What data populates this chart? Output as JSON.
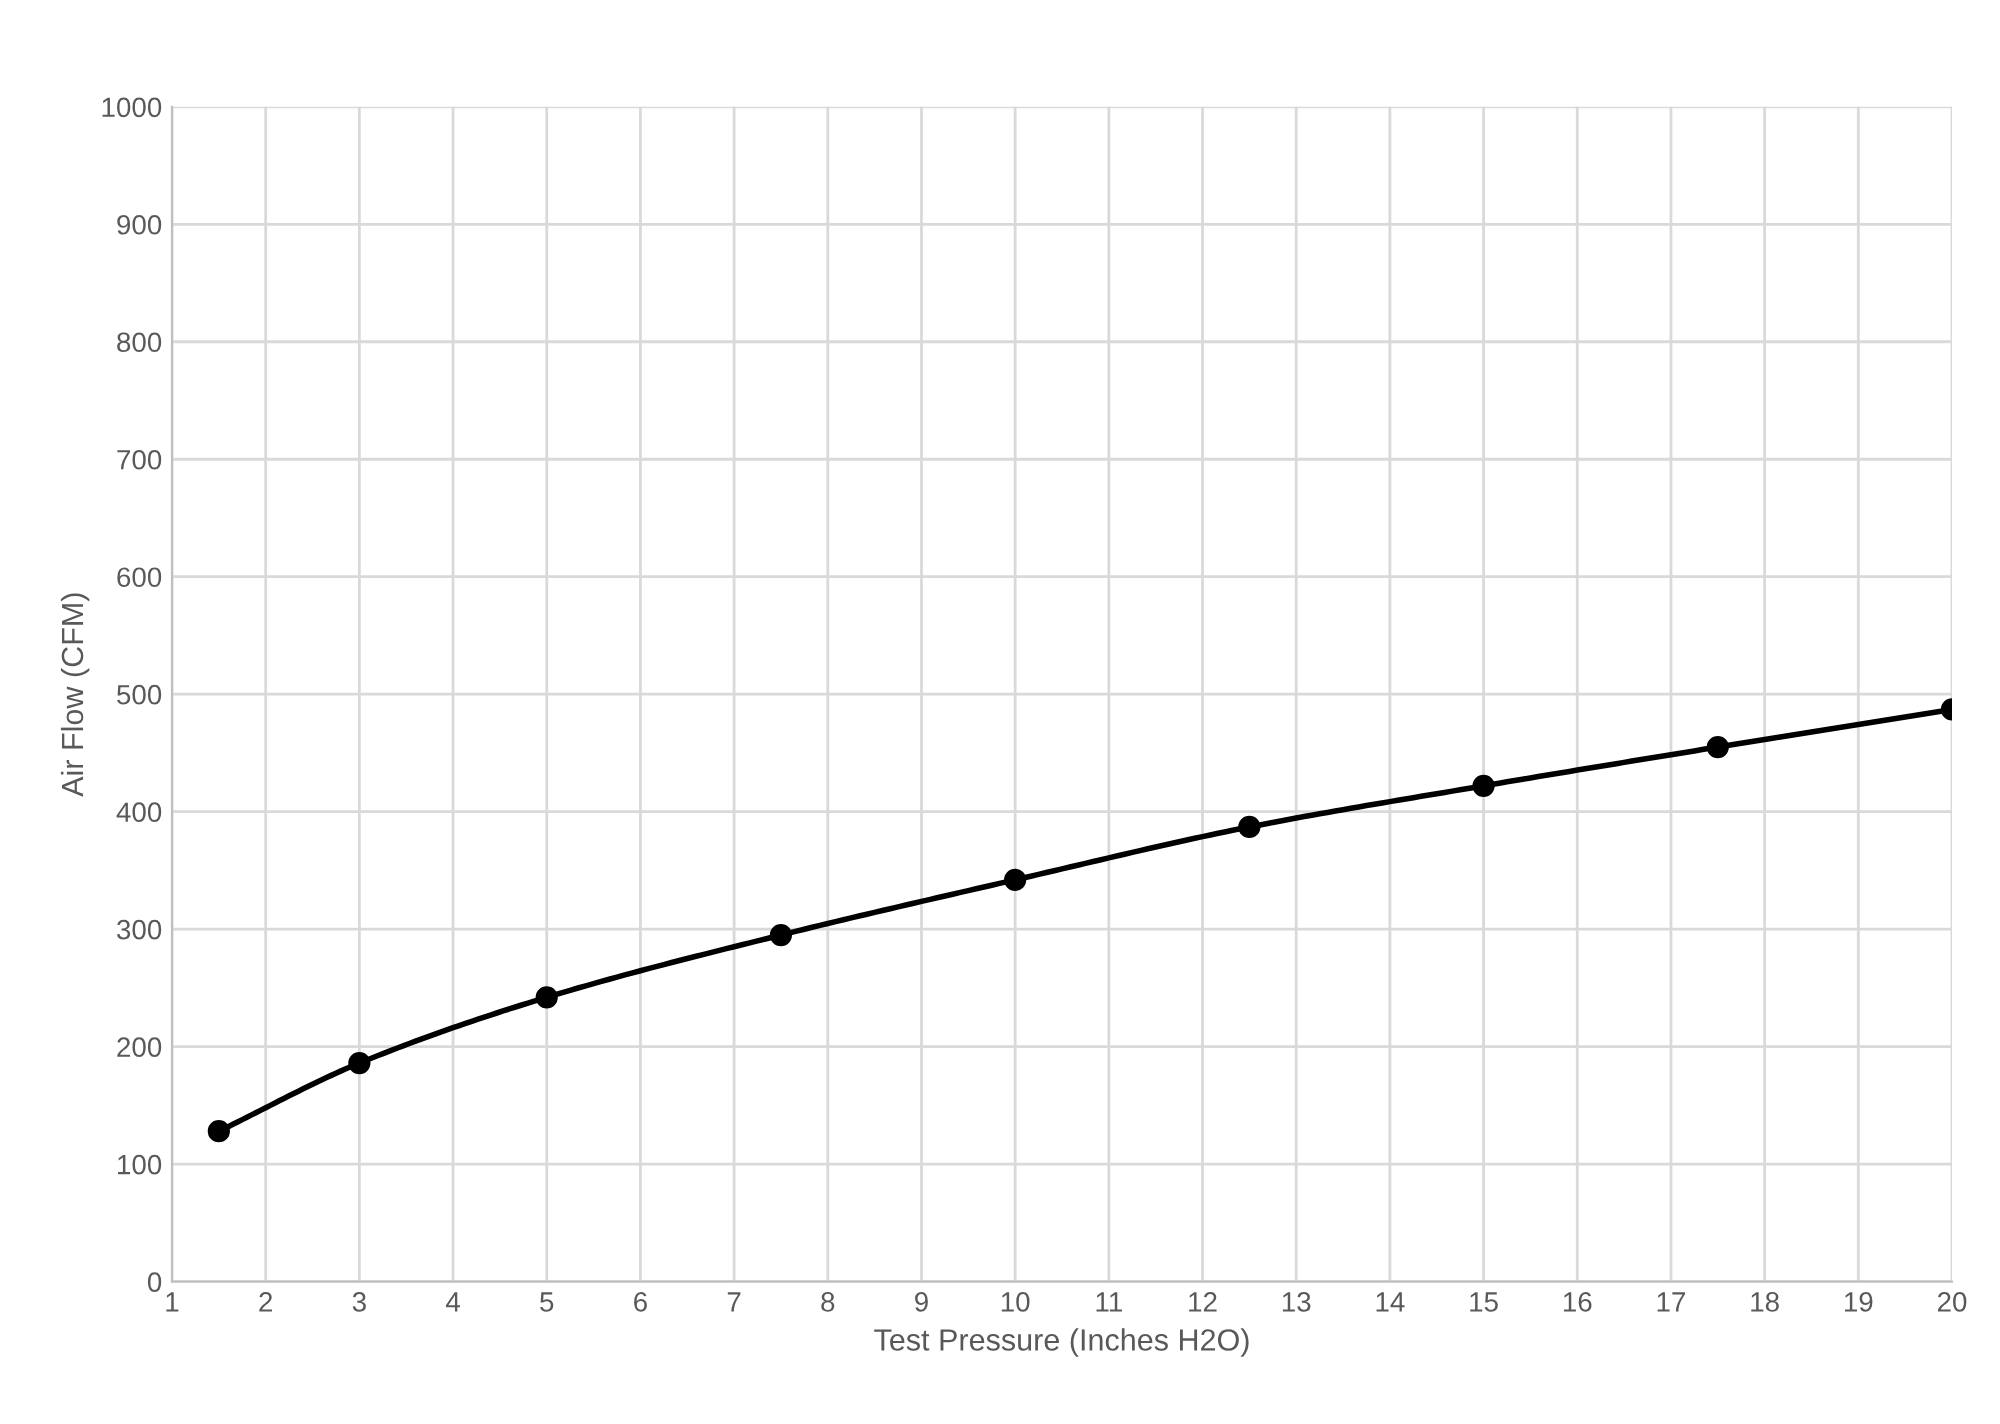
{
  "chart_data": {
    "type": "line",
    "xlabel": "Test Pressure (Inches H2O)",
    "ylabel": "Air Flow (CFM)",
    "x": [
      1.5,
      3,
      5,
      7.5,
      10,
      12.5,
      15,
      17.5,
      20
    ],
    "series": [
      {
        "color": "#000000",
        "values": [
          128,
          186,
          242,
          295,
          342,
          387,
          422,
          455,
          487
        ]
      }
    ],
    "xlim": [
      1,
      20
    ],
    "xticks": [
      1,
      2,
      3,
      4,
      5,
      6,
      7,
      8,
      9,
      10,
      11,
      12,
      13,
      14,
      15,
      16,
      17,
      18,
      19,
      20
    ],
    "ylim": [
      0,
      1000
    ],
    "yticks": [
      0,
      100,
      200,
      300,
      400,
      500,
      600,
      700,
      800,
      900,
      1000
    ],
    "grid": true,
    "marker": "circle",
    "line_style": "solid",
    "legend": false
  }
}
